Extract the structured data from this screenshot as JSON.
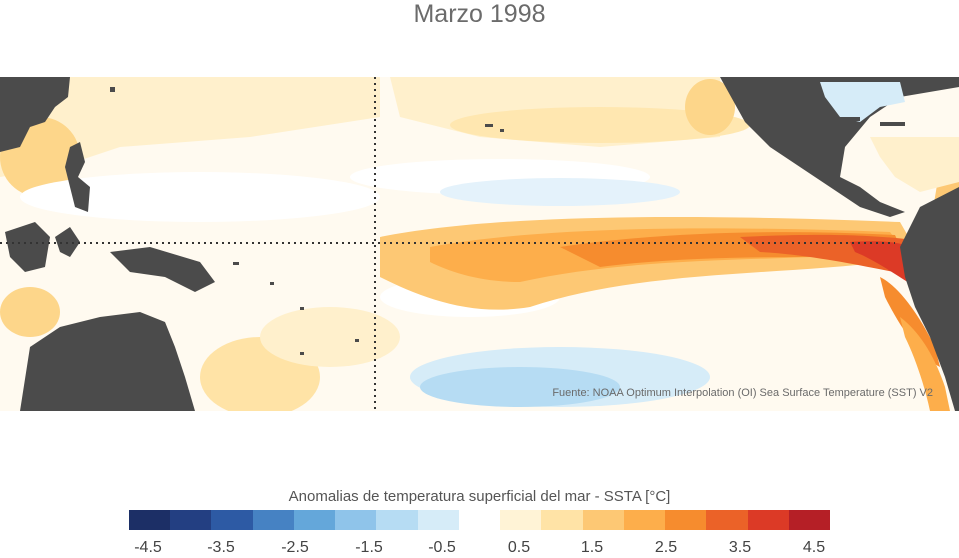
{
  "title": "Marzo 1998",
  "source": "Fuente: NOAA Optimum Interpolation (OI) Sea Surface Temperature (SST) V2",
  "colorbar": {
    "title": "Anomalias de temperatura superficial del mar - SSTA  [°C]",
    "ticks": [
      "-4.5",
      "-3.5",
      "-2.5",
      "-1.5",
      "-0.5",
      "0.5",
      "1.5",
      "2.5",
      "3.5",
      "4.5"
    ],
    "colors": [
      "#1c2f66",
      "#233f82",
      "#2d5aa4",
      "#4682c3",
      "#64a7da",
      "#8fc4ea",
      "#b6dcf3",
      "#d6ecf8",
      "#ffffff",
      "#fff3d6",
      "#ffe3a6",
      "#fdc874",
      "#fdae4b",
      "#f68c2e",
      "#eb6228",
      "#dc3a26",
      "#b51f26"
    ]
  },
  "map": {
    "land_color": "#4b4b4b",
    "reference_lines": [
      "equator",
      "dateline-180"
    ],
    "line_style": "dotted"
  }
}
